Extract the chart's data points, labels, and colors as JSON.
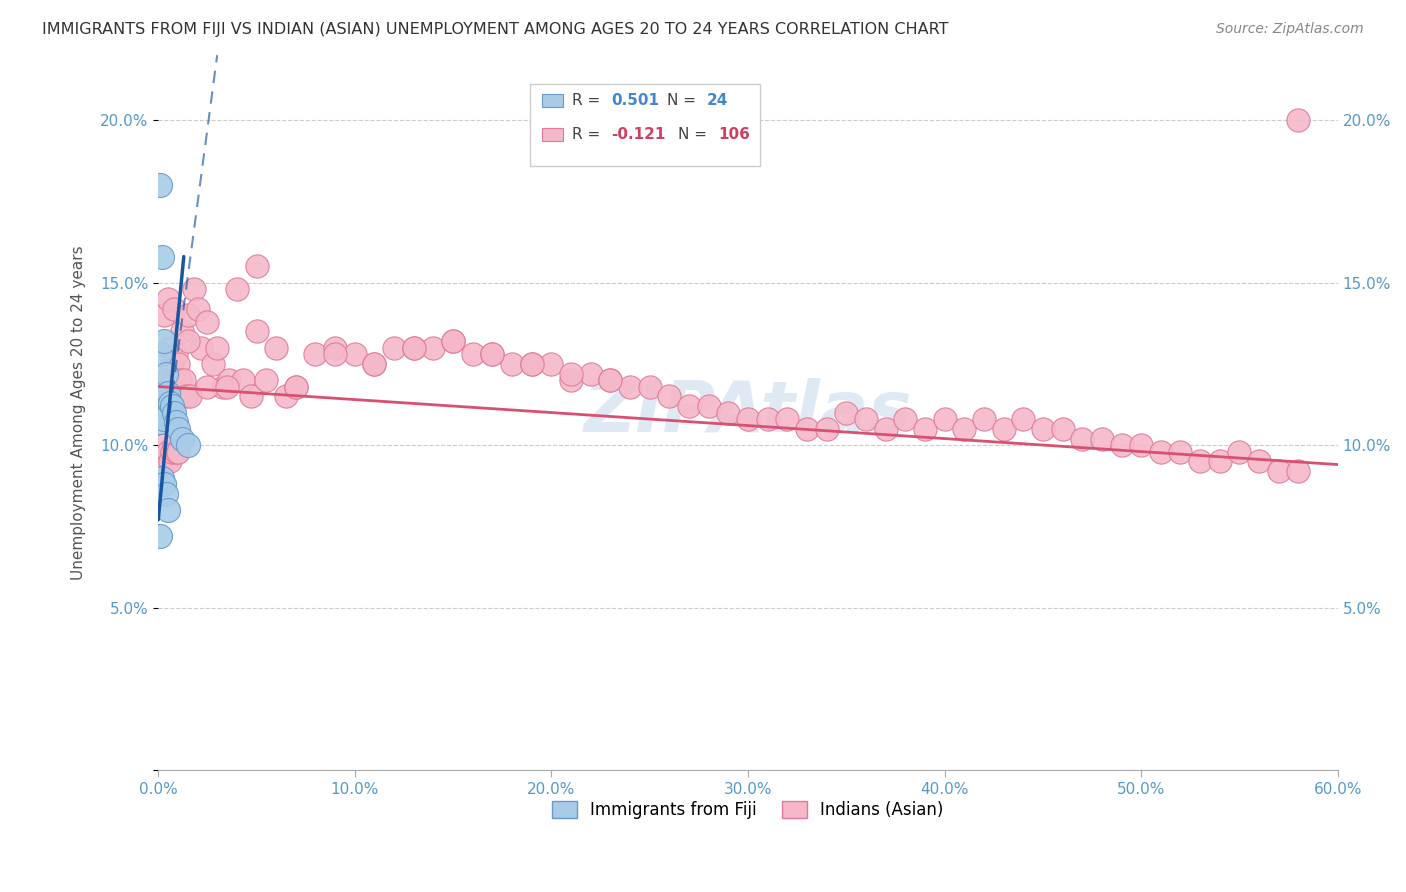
{
  "title": "IMMIGRANTS FROM FIJI VS INDIAN (ASIAN) UNEMPLOYMENT AMONG AGES 20 TO 24 YEARS CORRELATION CHART",
  "source": "Source: ZipAtlas.com",
  "ylabel": "Unemployment Among Ages 20 to 24 years",
  "xlim": [
    0,
    0.6
  ],
  "ylim": [
    0,
    0.22
  ],
  "xticks": [
    0.0,
    0.1,
    0.2,
    0.3,
    0.4,
    0.5,
    0.6
  ],
  "xtick_labels": [
    "0.0%",
    "10.0%",
    "20.0%",
    "30.0%",
    "40.0%",
    "50.0%",
    "60.0%"
  ],
  "yticks": [
    0.0,
    0.05,
    0.1,
    0.15,
    0.2
  ],
  "ytick_labels": [
    "",
    "5.0%",
    "10.0%",
    "15.0%",
    "20.0%"
  ],
  "fiji_R": "0.501",
  "fiji_N": "24",
  "indian_R": "-0.121",
  "indian_N": "106",
  "fiji_color": "#a8cce8",
  "fiji_edge_color": "#6699cc",
  "indian_color": "#f5b8c8",
  "indian_edge_color": "#e07898",
  "fiji_trend_color": "#1a55a0",
  "indian_trend_color": "#d95070",
  "watermark": "ZIPAtlas",
  "fiji_scatter_x": [
    0.001,
    0.001,
    0.001,
    0.001,
    0.002,
    0.002,
    0.002,
    0.002,
    0.003,
    0.003,
    0.003,
    0.003,
    0.004,
    0.004,
    0.005,
    0.005,
    0.006,
    0.007,
    0.008,
    0.009,
    0.01,
    0.012,
    0.015,
    0.001
  ],
  "fiji_scatter_y": [
    0.18,
    0.128,
    0.112,
    0.107,
    0.158,
    0.116,
    0.11,
    0.09,
    0.132,
    0.115,
    0.108,
    0.088,
    0.122,
    0.085,
    0.116,
    0.08,
    0.113,
    0.112,
    0.11,
    0.107,
    0.105,
    0.102,
    0.1,
    0.072
  ],
  "indian_scatter_x": [
    0.001,
    0.002,
    0.002,
    0.003,
    0.003,
    0.004,
    0.004,
    0.005,
    0.005,
    0.006,
    0.006,
    0.007,
    0.007,
    0.008,
    0.008,
    0.009,
    0.009,
    0.01,
    0.01,
    0.011,
    0.012,
    0.013,
    0.014,
    0.015,
    0.016,
    0.018,
    0.02,
    0.022,
    0.025,
    0.028,
    0.03,
    0.033,
    0.036,
    0.04,
    0.043,
    0.047,
    0.05,
    0.055,
    0.06,
    0.065,
    0.07,
    0.08,
    0.09,
    0.1,
    0.11,
    0.12,
    0.13,
    0.14,
    0.15,
    0.16,
    0.17,
    0.18,
    0.19,
    0.2,
    0.21,
    0.22,
    0.23,
    0.24,
    0.25,
    0.26,
    0.27,
    0.28,
    0.29,
    0.3,
    0.31,
    0.32,
    0.33,
    0.34,
    0.35,
    0.36,
    0.37,
    0.38,
    0.39,
    0.4,
    0.41,
    0.42,
    0.43,
    0.44,
    0.45,
    0.46,
    0.47,
    0.48,
    0.49,
    0.5,
    0.51,
    0.52,
    0.53,
    0.54,
    0.55,
    0.56,
    0.57,
    0.58,
    0.015,
    0.025,
    0.035,
    0.05,
    0.07,
    0.09,
    0.11,
    0.13,
    0.15,
    0.17,
    0.19,
    0.21,
    0.23,
    0.58
  ],
  "indian_scatter_y": [
    0.11,
    0.115,
    0.095,
    0.14,
    0.1,
    0.12,
    0.095,
    0.145,
    0.098,
    0.13,
    0.095,
    0.125,
    0.098,
    0.142,
    0.1,
    0.128,
    0.098,
    0.125,
    0.098,
    0.12,
    0.135,
    0.12,
    0.115,
    0.14,
    0.115,
    0.148,
    0.142,
    0.13,
    0.138,
    0.125,
    0.13,
    0.118,
    0.12,
    0.148,
    0.12,
    0.115,
    0.155,
    0.12,
    0.13,
    0.115,
    0.118,
    0.128,
    0.13,
    0.128,
    0.125,
    0.13,
    0.13,
    0.13,
    0.132,
    0.128,
    0.128,
    0.125,
    0.125,
    0.125,
    0.12,
    0.122,
    0.12,
    0.118,
    0.118,
    0.115,
    0.112,
    0.112,
    0.11,
    0.108,
    0.108,
    0.108,
    0.105,
    0.105,
    0.11,
    0.108,
    0.105,
    0.108,
    0.105,
    0.108,
    0.105,
    0.108,
    0.105,
    0.108,
    0.105,
    0.105,
    0.102,
    0.102,
    0.1,
    0.1,
    0.098,
    0.098,
    0.095,
    0.095,
    0.098,
    0.095,
    0.092,
    0.092,
    0.132,
    0.118,
    0.118,
    0.135,
    0.118,
    0.128,
    0.125,
    0.13,
    0.132,
    0.128,
    0.125,
    0.122,
    0.12,
    0.2
  ],
  "indian_trend_start_x": 0.0,
  "indian_trend_start_y": 0.118,
  "indian_trend_end_x": 0.6,
  "indian_trend_end_y": 0.094,
  "fiji_trend_solid_x0": 0.0,
  "fiji_trend_solid_y0": 0.077,
  "fiji_trend_solid_x1": 0.013,
  "fiji_trend_solid_y1": 0.158,
  "fiji_trend_dash_x0": 0.003,
  "fiji_trend_dash_y0": 0.097,
  "fiji_trend_dash_x1": 0.03,
  "fiji_trend_dash_y1": 0.22
}
